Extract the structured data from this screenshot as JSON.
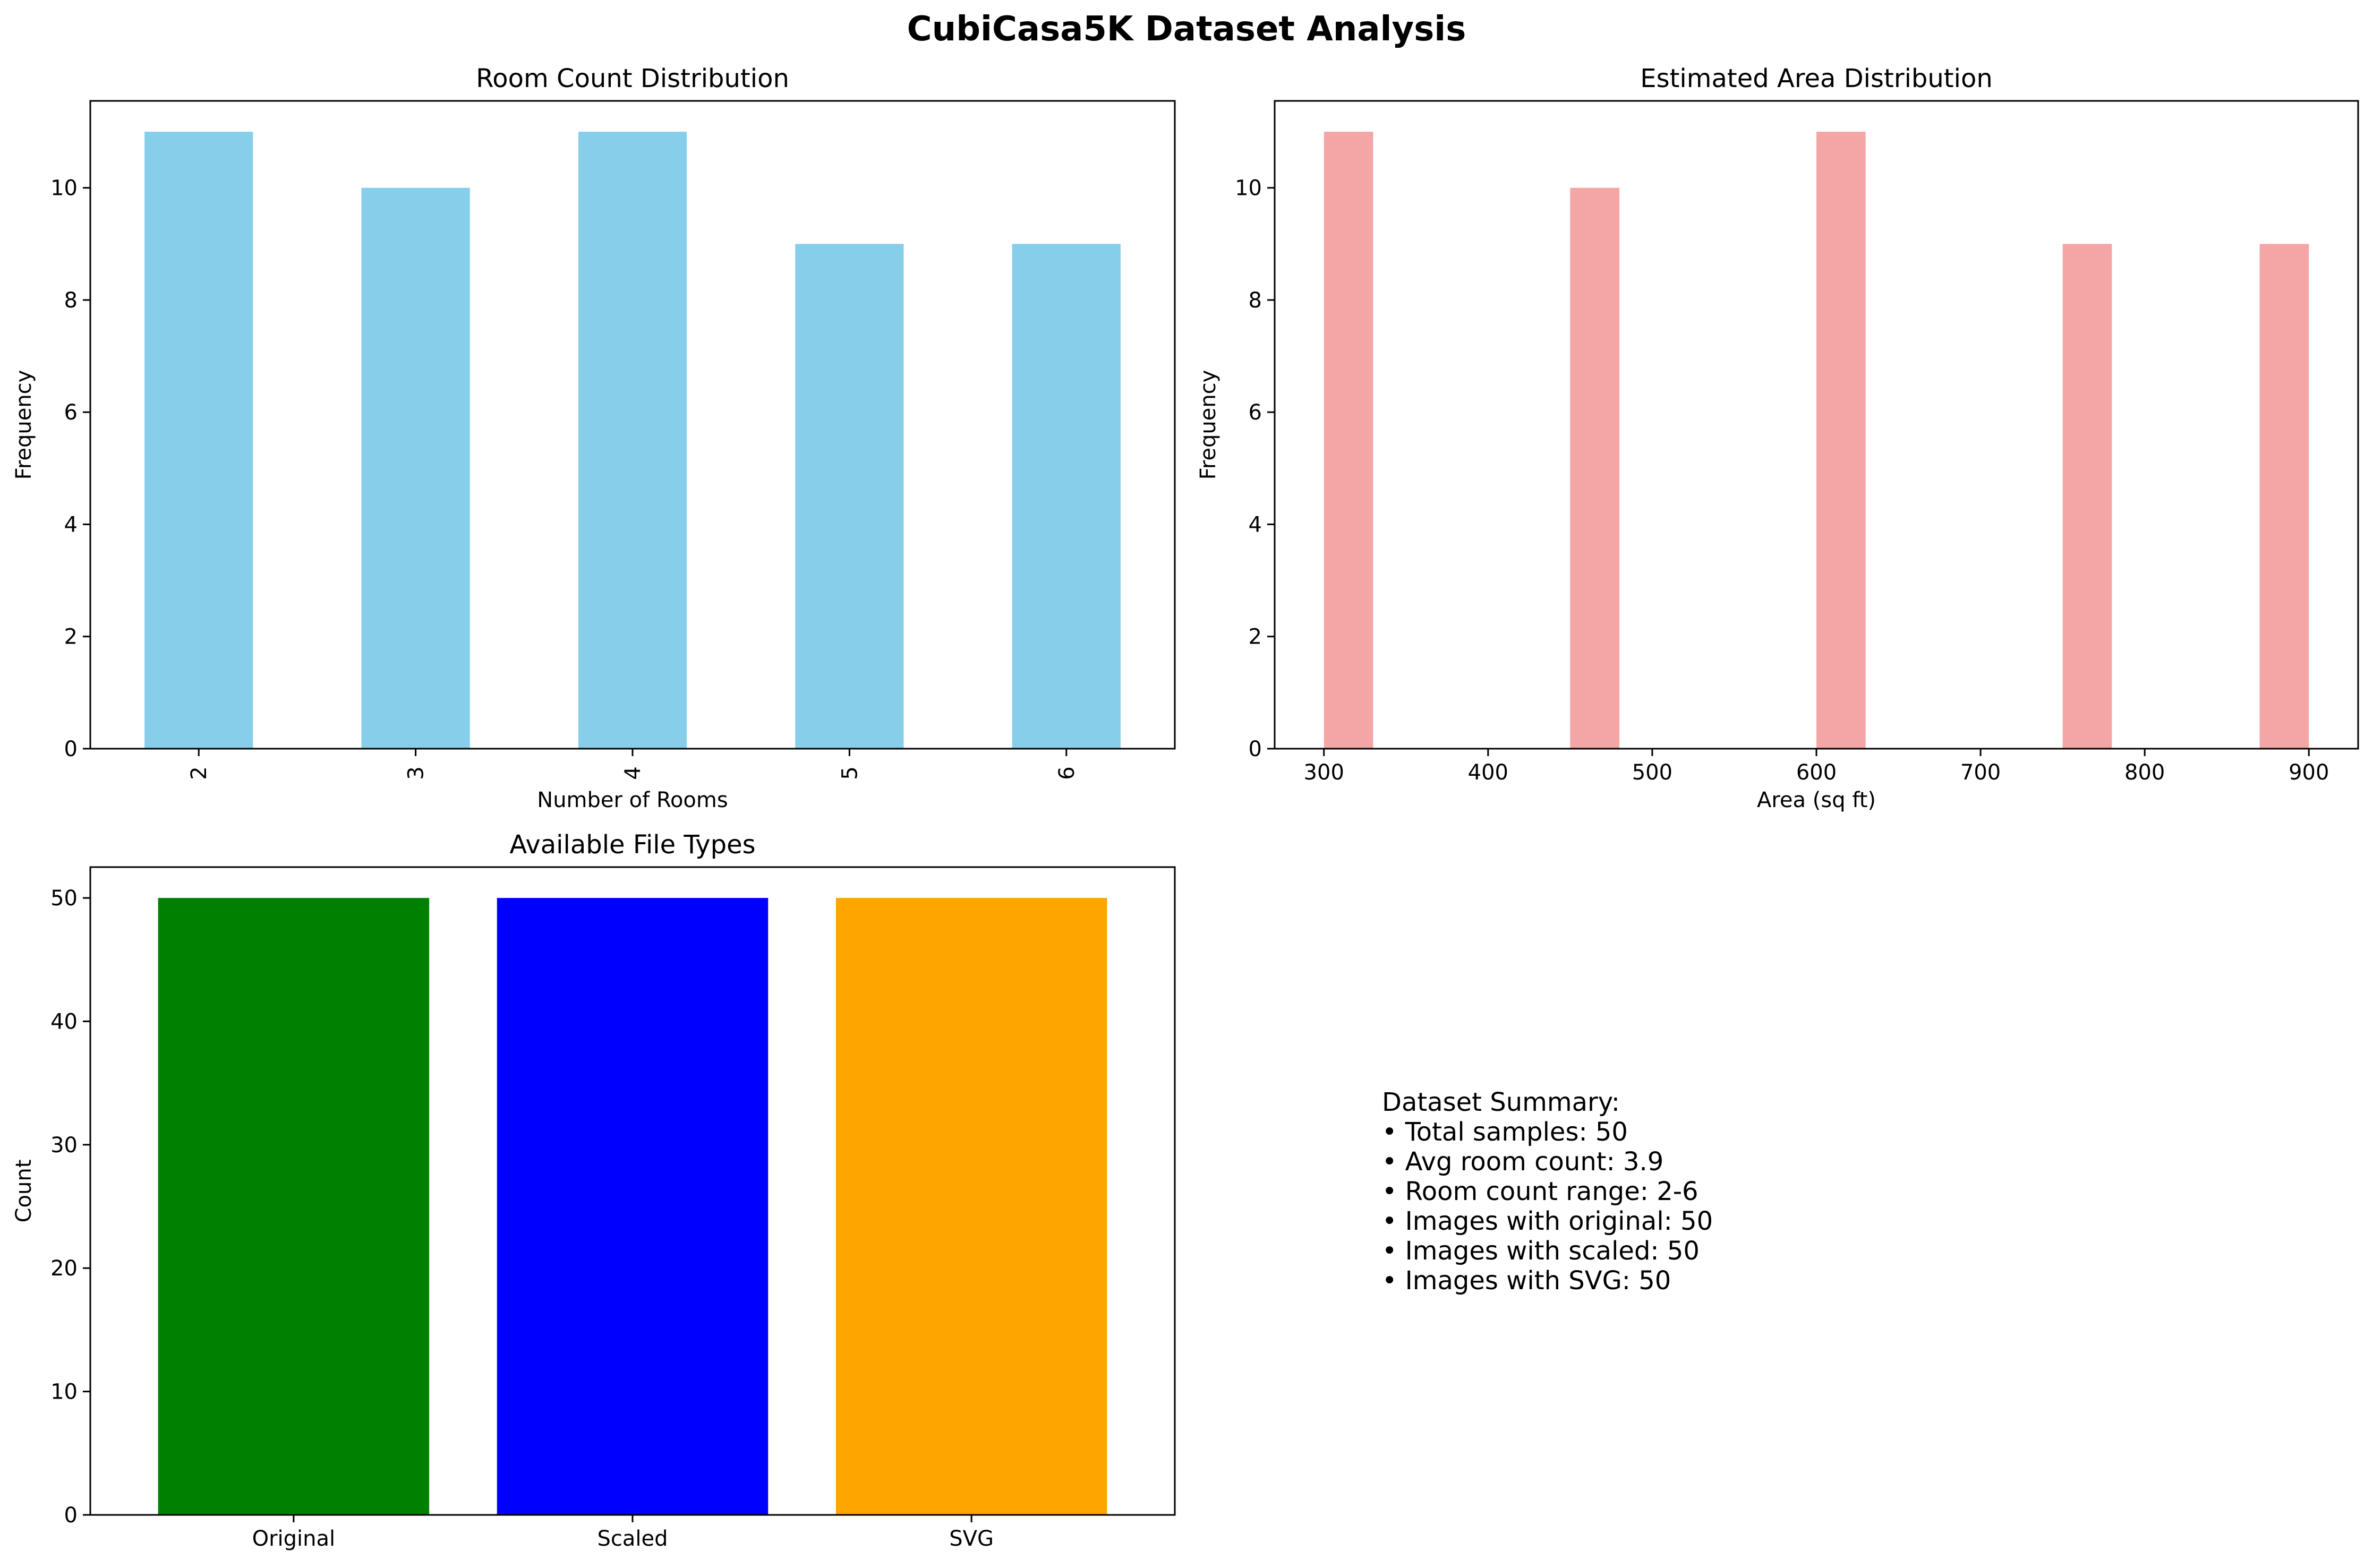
{
  "figure": {
    "title": "CubiCasa5K Dataset Analysis"
  },
  "chart_data": [
    {
      "type": "bar",
      "title": "Room Count Distribution",
      "xlabel": "Number of Rooms",
      "ylabel": "Frequency",
      "categories": [
        "2",
        "3",
        "4",
        "5",
        "6"
      ],
      "values": [
        11,
        10,
        11,
        9,
        9
      ],
      "ylim": [
        0,
        11.55
      ],
      "yticks": [
        0,
        2,
        4,
        6,
        8,
        10
      ],
      "xtick_rotation": "vertical",
      "color": "#87CEEB",
      "grid": false
    },
    {
      "type": "bar",
      "subtype": "histogram",
      "title": "Estimated Area Distribution",
      "xlabel": "Area (sq ft)",
      "ylabel": "Frequency",
      "bin_width": 30,
      "bins": [
        {
          "start": 300,
          "end": 330,
          "count": 11
        },
        {
          "start": 450,
          "end": 480,
          "count": 10
        },
        {
          "start": 600,
          "end": 630,
          "count": 11
        },
        {
          "start": 750,
          "end": 780,
          "count": 9
        },
        {
          "start": 870,
          "end": 900,
          "count": 9
        }
      ],
      "xlim": [
        270,
        930
      ],
      "ylim": [
        0,
        11.55
      ],
      "xticks": [
        300,
        400,
        500,
        600,
        700,
        800,
        900
      ],
      "yticks": [
        0,
        2,
        4,
        6,
        8,
        10
      ],
      "color": "#F08080",
      "opacity": 0.7,
      "grid": false
    },
    {
      "type": "bar",
      "title": "Available File Types",
      "xlabel": "",
      "ylabel": "Count",
      "categories": [
        "Original",
        "Scaled",
        "SVG"
      ],
      "values": [
        50,
        50,
        50
      ],
      "colors": [
        "#008000",
        "#0000FF",
        "#FFA500"
      ],
      "ylim": [
        0,
        52.5
      ],
      "yticks": [
        0,
        10,
        20,
        30,
        40,
        50
      ],
      "grid": false
    }
  ],
  "summary": {
    "lines": [
      "Dataset Summary:",
      "• Total samples: 50",
      "• Avg room count: 3.9",
      "• Room count range: 2-6",
      "• Images with original: 50",
      "• Images with scaled: 50",
      "• Images with SVG: 50"
    ]
  }
}
